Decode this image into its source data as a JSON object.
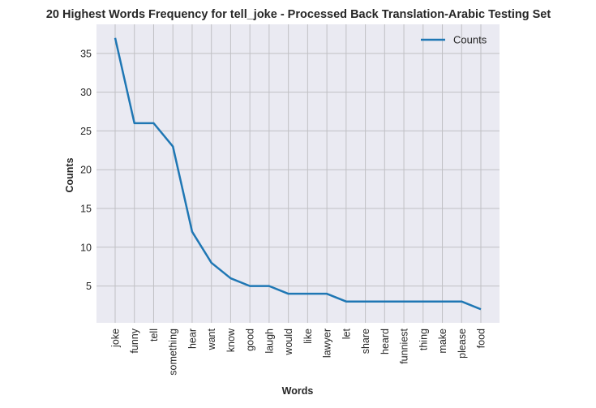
{
  "chart_data": {
    "type": "line",
    "title": "20 Highest Words Frequency for tell_joke - Processed Back Translation-Arabic Testing Set",
    "xlabel": "Words",
    "ylabel": "Counts",
    "categories": [
      "joke",
      "funny",
      "tell",
      "something",
      "hear",
      "want",
      "know",
      "good",
      "laugh",
      "would",
      "like",
      "lawyer",
      "let",
      "share",
      "heard",
      "funniest",
      "thing",
      "make",
      "please",
      "food"
    ],
    "series": [
      {
        "name": "Counts",
        "values": [
          37,
          26,
          26,
          23,
          12,
          8,
          6,
          5,
          5,
          4,
          4,
          4,
          3,
          3,
          3,
          3,
          3,
          3,
          3,
          2
        ]
      }
    ],
    "yticks": [
      5,
      10,
      15,
      20,
      25,
      30,
      35
    ],
    "ylim": [
      0.25,
      38.75
    ],
    "grid": true,
    "legend": "top-right",
    "colors": {
      "line": "#1f77b4",
      "plot_background": "#eaeaf2",
      "grid": "#c0c0c4"
    }
  }
}
